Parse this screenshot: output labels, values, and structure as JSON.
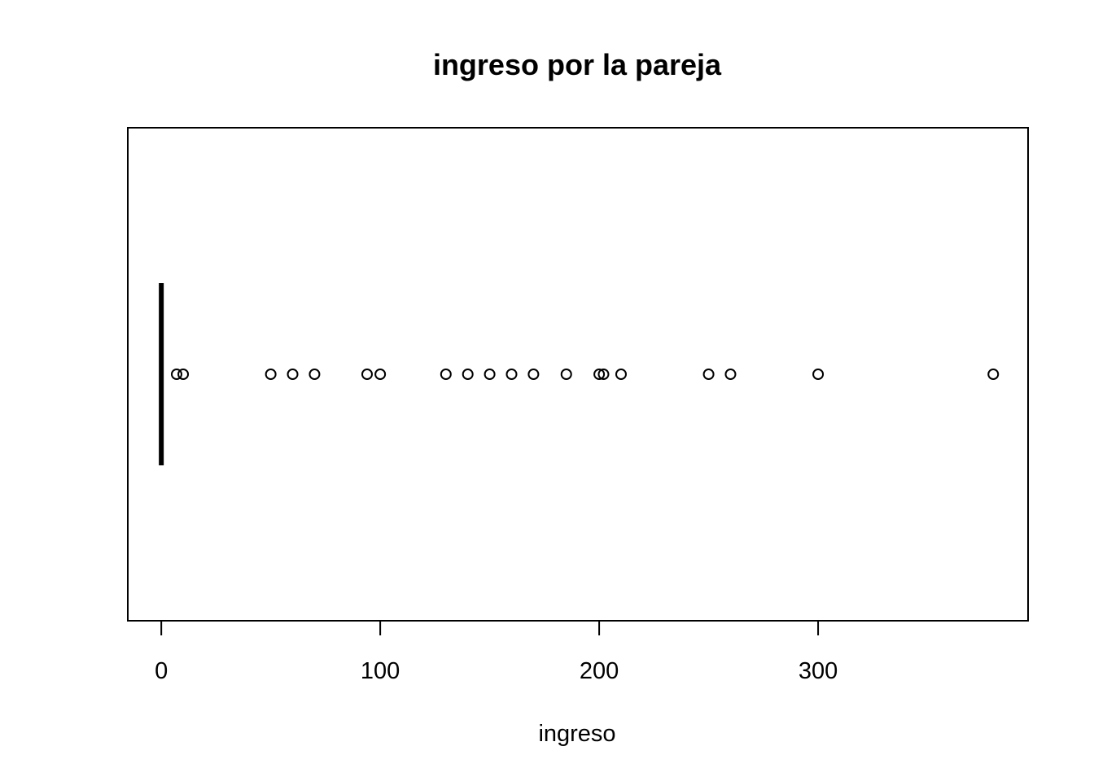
{
  "chart_data": {
    "type": "boxplot",
    "orientation": "horizontal",
    "title": "ingreso por la pareja",
    "xlabel": "ingreso",
    "ylabel": "",
    "xlim": [
      -15.3,
      395.9
    ],
    "x_ticks": [
      0,
      100,
      200,
      300
    ],
    "x_tick_labels": [
      "0",
      "100",
      "200",
      "300"
    ],
    "box": {
      "min": 0,
      "q1": 0,
      "median": 0,
      "q3": 0,
      "max": 0
    },
    "outliers": [
      7,
      10,
      50,
      60,
      70,
      94,
      100,
      130,
      140,
      150,
      160,
      170,
      185,
      200,
      202,
      210,
      250,
      260,
      300,
      380
    ],
    "grid": false,
    "colors": {
      "line": "#000000",
      "background": "#ffffff"
    }
  }
}
